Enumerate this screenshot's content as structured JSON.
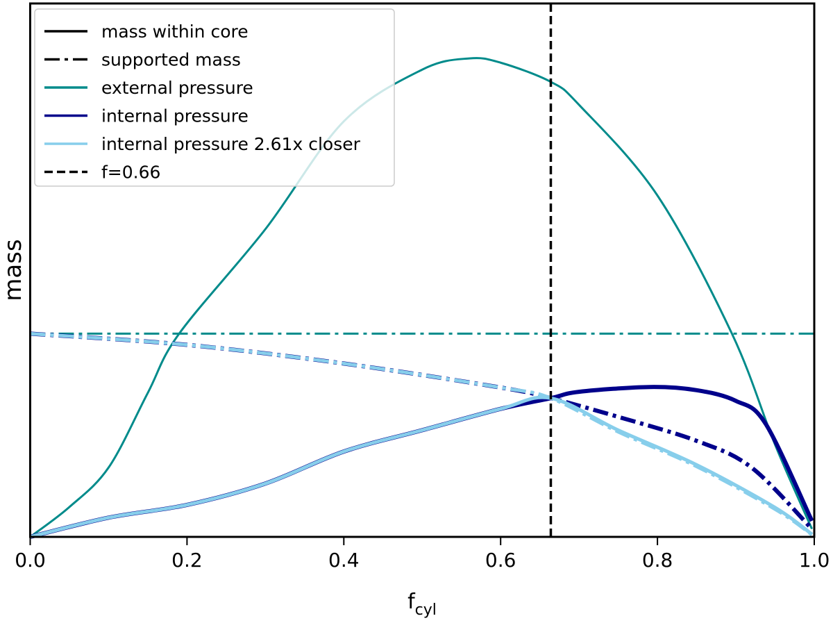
{
  "chart_data": {
    "type": "line",
    "xlabel": "f",
    "xlabel_sub": "cyl",
    "ylabel": "mass",
    "xlim": [
      0,
      1
    ],
    "ylim": [
      0,
      1
    ],
    "y_ticks_shown": false,
    "grid": false,
    "legend_position": "top-left",
    "x_ticks": [
      "0.0",
      "0.2",
      "0.4",
      "0.6",
      "0.8",
      "1.0"
    ],
    "colors": {
      "navy": "#00008b",
      "teal": "#008b8b",
      "lightblue": "#87ceeb",
      "black": "#000000"
    },
    "legend": [
      {
        "label": "mass within core",
        "color": "#000000",
        "style": "solid"
      },
      {
        "label": "supported mass",
        "color": "#000000",
        "style": "dashdot"
      },
      {
        "label": "external pressure",
        "color": "#008b8b",
        "style": "solid"
      },
      {
        "label": "internal pressure",
        "color": "#00008b",
        "style": "solid"
      },
      {
        "label": "internal pressure 2.61x closer",
        "color": "#87ceeb",
        "style": "solid"
      },
      {
        "label": "f=0.66",
        "color": "#000000",
        "style": "dashed"
      }
    ],
    "vline": {
      "x": 0.664,
      "label": "f=0.66"
    },
    "series": [
      {
        "group": "external pressure",
        "kind": "mass within core",
        "color": "#008b8b",
        "style": "solid",
        "x": [
          0,
          0.05,
          0.1,
          0.15,
          0.19,
          0.3,
          0.4,
          0.5,
          0.56,
          0.6,
          0.664,
          0.7,
          0.8,
          0.895,
          0.95,
          0.997
        ],
        "y": [
          0,
          0.056,
          0.13,
          0.27,
          0.381,
          0.577,
          0.779,
          0.876,
          0.897,
          0.889,
          0.853,
          0.81,
          0.64,
          0.381,
          0.173,
          0.015
        ]
      },
      {
        "group": "external pressure",
        "kind": "supported mass",
        "color": "#008b8b",
        "style": "dashdot",
        "x": [
          0,
          1
        ],
        "y": [
          0.381,
          0.381
        ]
      },
      {
        "group": "internal pressure",
        "kind": "mass within core",
        "color": "#00008b",
        "style": "solid",
        "x": [
          0,
          0.1,
          0.2,
          0.3,
          0.4,
          0.5,
          0.6,
          0.664,
          0.7,
          0.79,
          0.85,
          0.9,
          0.938,
          0.997
        ],
        "y": [
          0,
          0.036,
          0.06,
          0.1,
          0.16,
          0.2,
          0.24,
          0.26,
          0.272,
          0.281,
          0.275,
          0.255,
          0.212,
          0.03
        ]
      },
      {
        "group": "internal pressure",
        "kind": "supported mass",
        "color": "#00008b",
        "style": "dashdot",
        "x": [
          0,
          0.2,
          0.4,
          0.6,
          0.664,
          0.75,
          0.85,
          0.92,
          0.997
        ],
        "y": [
          0.381,
          0.36,
          0.325,
          0.28,
          0.26,
          0.225,
          0.18,
          0.13,
          0.015
        ]
      },
      {
        "group": "internal pressure 2.61x closer",
        "kind": "mass within core",
        "color": "#87ceeb",
        "style": "solid",
        "x": [
          0,
          0.1,
          0.2,
          0.3,
          0.4,
          0.5,
          0.6,
          0.664,
          0.75,
          0.85,
          0.95,
          0.997
        ],
        "y": [
          0,
          0.036,
          0.06,
          0.1,
          0.16,
          0.2,
          0.24,
          0.26,
          0.2,
          0.135,
          0.055,
          0.005
        ]
      },
      {
        "group": "internal pressure 2.61x closer",
        "kind": "supported mass",
        "color": "#87ceeb",
        "style": "dashdot",
        "x": [
          0,
          0.2,
          0.4,
          0.6,
          0.664,
          0.75,
          0.85,
          0.95,
          0.997
        ],
        "y": [
          0.381,
          0.36,
          0.325,
          0.28,
          0.26,
          0.197,
          0.132,
          0.052,
          0.004
        ]
      }
    ]
  }
}
